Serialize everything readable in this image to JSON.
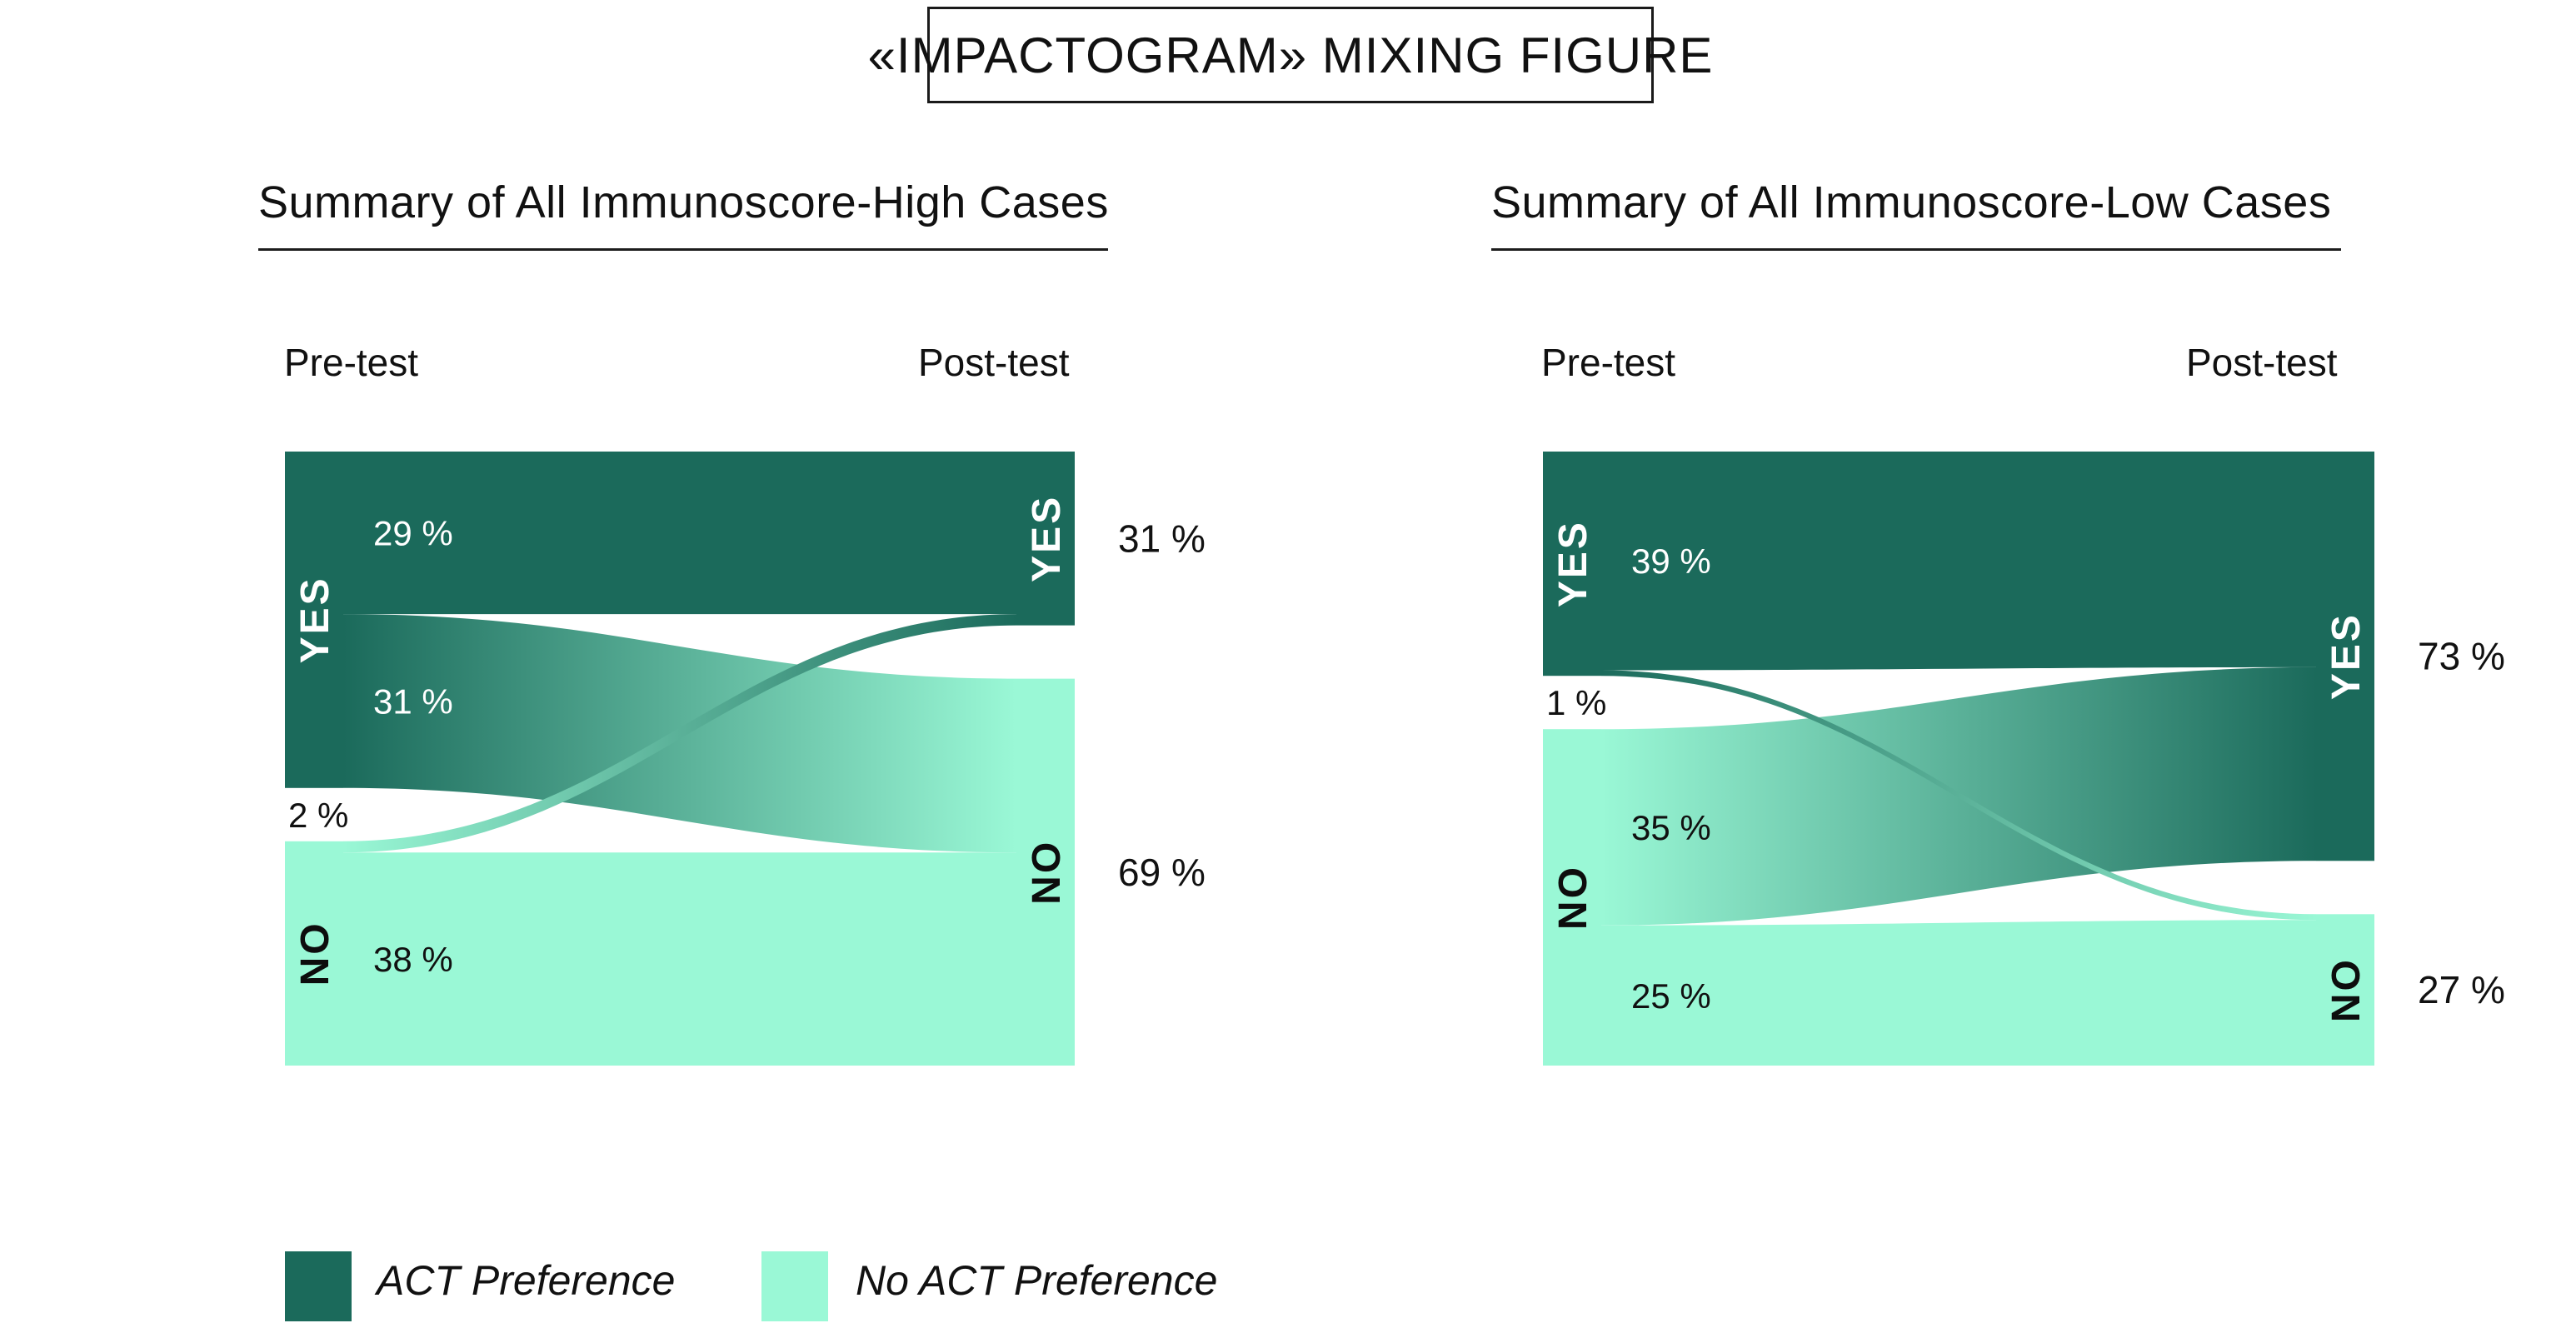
{
  "colors": {
    "dark": "#1B6A5B",
    "light": "#9AF8D6",
    "text": "#111111",
    "white_label": "#FFFFFF"
  },
  "title": {
    "text": "«IMPACTOGRAM» MIXING FIGURE"
  },
  "legend": {
    "items": [
      {
        "label": "ACT Preference",
        "color_key": "dark"
      },
      {
        "label": "No ACT Preference",
        "color_key": "light"
      }
    ]
  },
  "chart_data": [
    {
      "type": "sankey",
      "title": "Summary of All Immunoscore-High Cases",
      "columns": {
        "pre": "Pre-test",
        "post": "Post-test"
      },
      "nodes": [
        {
          "id": "pre_yes",
          "side": "pre",
          "label": "YES",
          "value": 60,
          "color_key": "dark"
        },
        {
          "id": "pre_no",
          "side": "pre",
          "label": "NO",
          "value": 40,
          "color_key": "light"
        },
        {
          "id": "post_yes",
          "side": "post",
          "label": "YES",
          "value": 31,
          "color_key": "dark",
          "pct_label": "31 %"
        },
        {
          "id": "post_no",
          "side": "post",
          "label": "NO",
          "value": 69,
          "color_key": "light",
          "pct_label": "69 %"
        }
      ],
      "flows": [
        {
          "from": "pre_yes",
          "to": "post_yes",
          "value": 29,
          "label": "29 %"
        },
        {
          "from": "pre_yes",
          "to": "post_no",
          "value": 31,
          "label": "31 %"
        },
        {
          "from": "pre_no",
          "to": "post_yes",
          "value": 2,
          "label": "2 %"
        },
        {
          "from": "pre_no",
          "to": "post_no",
          "value": 38,
          "label": "38 %"
        }
      ]
    },
    {
      "type": "sankey",
      "title": "Summary of All Immunoscore-Low Cases",
      "columns": {
        "pre": "Pre-test",
        "post": "Post-test"
      },
      "nodes": [
        {
          "id": "pre_yes",
          "side": "pre",
          "label": "YES",
          "value": 40,
          "color_key": "dark"
        },
        {
          "id": "pre_no",
          "side": "pre",
          "label": "NO",
          "value": 60,
          "color_key": "light"
        },
        {
          "id": "post_yes",
          "side": "post",
          "label": "YES",
          "value": 73,
          "color_key": "dark",
          "pct_label": "73 %"
        },
        {
          "id": "post_no",
          "side": "post",
          "label": "NO",
          "value": 27,
          "color_key": "light",
          "pct_label": "27 %"
        }
      ],
      "flows": [
        {
          "from": "pre_yes",
          "to": "post_yes",
          "value": 39,
          "label": "39 %"
        },
        {
          "from": "pre_yes",
          "to": "post_no",
          "value": 1,
          "label": "1 %"
        },
        {
          "from": "pre_no",
          "to": "post_yes",
          "value": 35,
          "label": "35 %"
        },
        {
          "from": "pre_no",
          "to": "post_no",
          "value": 25,
          "label": "25 %"
        }
      ]
    }
  ]
}
